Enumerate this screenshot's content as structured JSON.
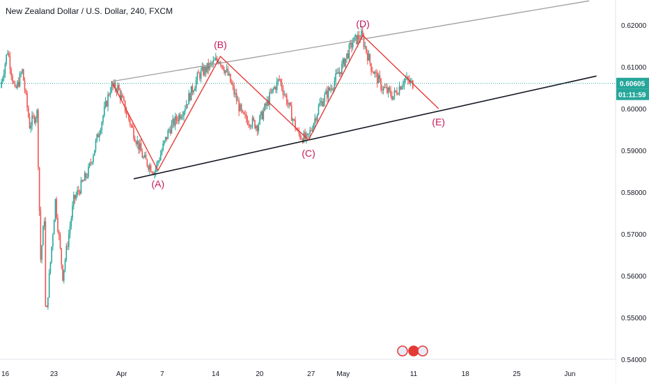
{
  "title": "New Zealand Dollar / U.S. Dollar, 240, FXCM",
  "colors": {
    "up": "#26a69a",
    "down": "#ef5350",
    "wave": "#e53935",
    "wave_label": "#c2185b",
    "price_line": "#26a69a",
    "upper_trend": "#9e9e9e",
    "lower_trend": "#131722",
    "axis_text": "#131722",
    "border": "#e0e3eb"
  },
  "chart_data": {
    "type": "candlestick",
    "y_range": [
      0.54,
      0.626
    ],
    "y_ticks": [
      "0.62000",
      "0.61000",
      "0.60000",
      "0.59000",
      "0.58000",
      "0.57000",
      "0.56000",
      "0.55000",
      "0.54000"
    ],
    "y_tick_values": [
      0.62,
      0.61,
      0.6,
      0.59,
      0.58,
      0.57,
      0.56,
      0.55,
      0.54
    ],
    "x_ticks": [
      "16",
      "23",
      "Apr",
      "7",
      "14",
      "20",
      "27",
      "May",
      "11",
      "18",
      "25",
      "Jun"
    ],
    "x_tick_days": [
      -16,
      -9,
      0,
      6,
      13,
      19,
      26,
      30,
      40,
      47,
      54,
      61
    ],
    "day_range": [
      -16.2,
      67.6
    ],
    "last_price": "0.60605",
    "last_price_value": 0.60605,
    "countdown": "01:11:59",
    "price_path": [
      [
        -16.0,
        0.605
      ],
      [
        -15.0,
        0.614
      ],
      [
        -14.0,
        0.604
      ],
      [
        -13.0,
        0.609
      ],
      [
        -12.0,
        0.596
      ],
      [
        -11.0,
        0.599
      ],
      [
        -10.5,
        0.564
      ],
      [
        -10.0,
        0.574
      ],
      [
        -9.8,
        0.548
      ],
      [
        -9.5,
        0.556
      ],
      [
        -8.5,
        0.578
      ],
      [
        -7.5,
        0.56
      ],
      [
        -6.0,
        0.578
      ],
      [
        -4.0,
        0.585
      ],
      [
        -2.5,
        0.595
      ],
      [
        -1.0,
        0.605
      ],
      [
        0.0,
        0.605
      ],
      [
        2.0,
        0.595
      ],
      [
        3.5,
        0.588
      ],
      [
        5.0,
        0.585
      ],
      [
        7.0,
        0.595
      ],
      [
        9.0,
        0.6
      ],
      [
        11.0,
        0.608
      ],
      [
        13.8,
        0.612
      ],
      [
        15.0,
        0.608
      ],
      [
        17.0,
        0.598
      ],
      [
        19.0,
        0.596
      ],
      [
        21.0,
        0.604
      ],
      [
        22.0,
        0.607
      ],
      [
        23.0,
        0.602
      ],
      [
        24.5,
        0.594
      ],
      [
        25.8,
        0.5925
      ],
      [
        27.5,
        0.601
      ],
      [
        29.0,
        0.605
      ],
      [
        30.5,
        0.61
      ],
      [
        32.0,
        0.616
      ],
      [
        33.2,
        0.6175
      ],
      [
        34.5,
        0.61
      ],
      [
        36.0,
        0.605
      ],
      [
        37.5,
        0.603
      ],
      [
        39.0,
        0.607
      ],
      [
        40.0,
        0.606
      ]
    ],
    "wave_points": [
      {
        "label": "(A)",
        "day": 5.3,
        "price": 0.5852,
        "label_pos": "below"
      },
      {
        "label": "(B)",
        "day": 13.8,
        "price": 0.6125,
        "label_pos": "above"
      },
      {
        "label": "(C)",
        "day": 25.8,
        "price": 0.5925,
        "label_pos": "below"
      },
      {
        "label": "(D)",
        "day": 33.2,
        "price": 0.6175,
        "label_pos": "above"
      },
      {
        "label": "(E)",
        "day": 43.5,
        "price": 0.6,
        "label_pos": "below"
      }
    ],
    "wave_start": {
      "day": -1.0,
      "price": 0.6065
    },
    "upper_trendline": [
      {
        "day": -1.0,
        "price": 0.6065
      },
      {
        "day": 64.0,
        "price": 0.6258
      }
    ],
    "lower_trendline": [
      {
        "day": 2.0,
        "price": 0.5832
      },
      {
        "day": 65.0,
        "price": 0.6078
      }
    ]
  }
}
